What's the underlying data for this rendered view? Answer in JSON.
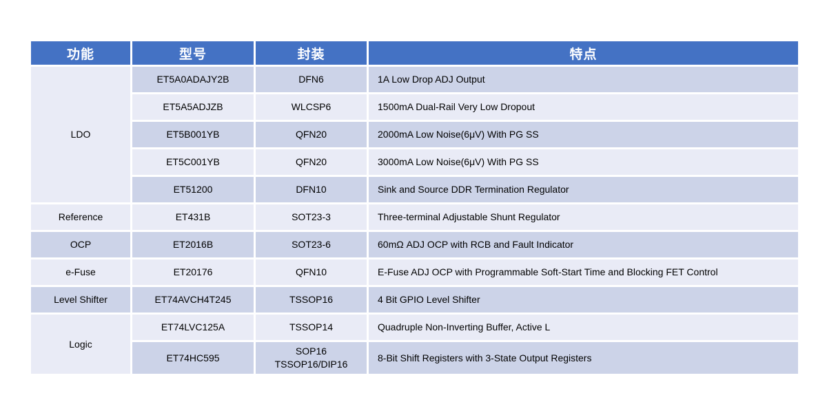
{
  "table": {
    "headers": [
      {
        "label": "功能"
      },
      {
        "label": "型号"
      },
      {
        "label": "封装"
      },
      {
        "label": "特点"
      }
    ],
    "groups": [
      {
        "function": "LDO",
        "cell_band": "light",
        "rows": [
          {
            "model": "ET5A0ADAJY2B",
            "package": "DFN6",
            "feature": "1A Low Drop ADJ Output",
            "band": "dark"
          },
          {
            "model": "ET5A5ADJZB",
            "package": "WLCSP6",
            "feature": "1500mA Dual-Rail Very Low Dropout",
            "band": "light"
          },
          {
            "model": "ET5B001YB",
            "package": "QFN20",
            "feature": "2000mA Low Noise(6μV) With PG SS",
            "band": "dark"
          },
          {
            "model": "ET5C001YB",
            "package": "QFN20",
            "feature": "3000mA Low Noise(6μV) With PG SS",
            "band": "light"
          },
          {
            "model": "ET51200",
            "package": "DFN10",
            "feature": "Sink and Source DDR Termination Regulator",
            "band": "dark"
          }
        ]
      },
      {
        "function": "Reference",
        "cell_band": "light",
        "rows": [
          {
            "model": "ET431B",
            "package": "SOT23-3",
            "feature": "Three-terminal Adjustable Shunt Regulator",
            "band": "light"
          }
        ]
      },
      {
        "function": "OCP",
        "cell_band": "dark",
        "rows": [
          {
            "model": "ET2016B",
            "package": "SOT23-6",
            "feature": "60mΩ ADJ OCP with RCB and Fault Indicator",
            "band": "dark"
          }
        ]
      },
      {
        "function": "e-Fuse",
        "cell_band": "light",
        "rows": [
          {
            "model": "ET20176",
            "package": "QFN10",
            "feature": "E-Fuse ADJ OCP with Programmable Soft-Start Time and Blocking FET Control",
            "band": "light"
          }
        ]
      },
      {
        "function": "Level Shifter",
        "cell_band": "dark",
        "rows": [
          {
            "model": "ET74AVCH4T245",
            "package": "TSSOP16",
            "feature": "4 Bit GPIO Level Shifter",
            "band": "dark"
          }
        ]
      },
      {
        "function": "Logic",
        "cell_band": "light",
        "rows": [
          {
            "model": "ET74LVC125A",
            "package": "TSSOP14",
            "feature": "Quadruple Non-Inverting Buffer, Active L",
            "band": "light"
          },
          {
            "model": "ET74HC595",
            "package": "SOP16\nTSSOP16/DIP16",
            "feature": "8-Bit Shift Registers with 3-State Output Registers",
            "band": "dark",
            "tall": true
          }
        ]
      }
    ],
    "colors": {
      "header_bg": "#4472c4",
      "header_text": "#ffffff",
      "band_dark": "#ccd3e8",
      "band_light": "#e9ebf6",
      "border": "#ffffff",
      "body_text": "#000000",
      "page_bg": "#ffffff"
    }
  }
}
